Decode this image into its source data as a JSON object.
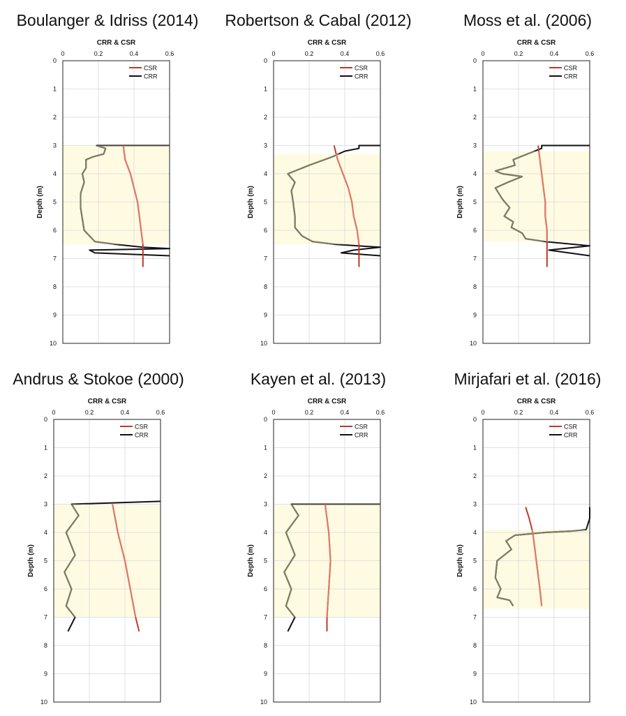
{
  "colors": {
    "csr": "#c0392b",
    "crr": "#111111",
    "crr_in_zone": "#7d7d66",
    "zone": "#fffbe3",
    "grid": "#d9d9d9",
    "csr_in_zone": "#e07a6a"
  },
  "chart_data": [
    {
      "type": "line",
      "title": "Boulanger & Idriss (2014)",
      "xlabel": "CRR & CSR",
      "ylabel": "Depth (m)",
      "xlim": [
        0,
        0.6
      ],
      "ylim": [
        0,
        10
      ],
      "xticks": [
        "0",
        "0.2",
        "0.4",
        "0.6"
      ],
      "yticks": [
        "0",
        "1",
        "2",
        "3",
        "4",
        "5",
        "6",
        "7",
        "8",
        "9",
        "10"
      ],
      "legend": [
        "CSR",
        "CRR"
      ],
      "highlight_depth": [
        3.0,
        6.5
      ],
      "csr": [
        [
          0.34,
          3.0
        ],
        [
          0.35,
          3.5
        ],
        [
          0.38,
          4.0
        ],
        [
          0.4,
          4.5
        ],
        [
          0.42,
          5.0
        ],
        [
          0.43,
          5.5
        ],
        [
          0.44,
          6.0
        ],
        [
          0.45,
          6.5
        ],
        [
          0.45,
          7.3
        ]
      ],
      "crr": [
        [
          0.6,
          3.0
        ],
        [
          0.19,
          3.0
        ],
        [
          0.24,
          3.1
        ],
        [
          0.23,
          3.3
        ],
        [
          0.17,
          3.4
        ],
        [
          0.13,
          3.5
        ],
        [
          0.13,
          3.8
        ],
        [
          0.11,
          4.0
        ],
        [
          0.12,
          4.3
        ],
        [
          0.1,
          4.7
        ],
        [
          0.1,
          5.2
        ],
        [
          0.11,
          5.6
        ],
        [
          0.12,
          6.0
        ],
        [
          0.15,
          6.2
        ],
        [
          0.18,
          6.4
        ],
        [
          0.3,
          6.5
        ],
        [
          0.45,
          6.6
        ],
        [
          0.6,
          6.65
        ],
        [
          0.15,
          6.7
        ],
        [
          0.18,
          6.8
        ],
        [
          0.6,
          6.9
        ]
      ]
    },
    {
      "type": "line",
      "title": "Robertson & Cabal (2012)",
      "xlabel": "CRR & CSR",
      "ylabel": "Depth (m)",
      "xlim": [
        0,
        0.6
      ],
      "ylim": [
        0,
        10
      ],
      "xticks": [
        "0",
        "0.2",
        "0.4",
        "0.6"
      ],
      "yticks": [
        "0",
        "1",
        "2",
        "3",
        "4",
        "5",
        "6",
        "7",
        "8",
        "9",
        "10"
      ],
      "legend": [
        "CSR",
        "CRR"
      ],
      "highlight_depth": [
        3.3,
        6.5
      ],
      "csr": [
        [
          0.34,
          3.0
        ],
        [
          0.36,
          3.5
        ],
        [
          0.39,
          4.0
        ],
        [
          0.42,
          4.5
        ],
        [
          0.44,
          5.0
        ],
        [
          0.45,
          5.5
        ],
        [
          0.47,
          6.0
        ],
        [
          0.48,
          6.5
        ],
        [
          0.48,
          7.3
        ]
      ],
      "crr": [
        [
          0.6,
          3.0
        ],
        [
          0.48,
          3.0
        ],
        [
          0.48,
          3.1
        ],
        [
          0.4,
          3.2
        ],
        [
          0.33,
          3.4
        ],
        [
          0.2,
          3.7
        ],
        [
          0.12,
          3.9
        ],
        [
          0.08,
          4.0
        ],
        [
          0.12,
          4.3
        ],
        [
          0.1,
          4.6
        ],
        [
          0.11,
          5.0
        ],
        [
          0.12,
          5.5
        ],
        [
          0.12,
          5.9
        ],
        [
          0.16,
          6.2
        ],
        [
          0.22,
          6.4
        ],
        [
          0.35,
          6.5
        ],
        [
          0.6,
          6.6
        ],
        [
          0.45,
          6.7
        ],
        [
          0.38,
          6.8
        ],
        [
          0.6,
          6.9
        ]
      ]
    },
    {
      "type": "line",
      "title": "Moss et al. (2006)",
      "xlabel": "CRR & CSR",
      "ylabel": "Depth (m)",
      "xlim": [
        0,
        0.6
      ],
      "ylim": [
        0,
        10
      ],
      "xticks": [
        "0",
        "0.2",
        "0.4",
        "0.6"
      ],
      "yticks": [
        "0",
        "1",
        "2",
        "3",
        "4",
        "5",
        "6",
        "7",
        "8",
        "9",
        "10"
      ],
      "legend": [
        "CSR",
        "CRR"
      ],
      "highlight_depth": [
        3.2,
        6.4
      ],
      "csr": [
        [
          0.31,
          3.0
        ],
        [
          0.32,
          3.5
        ],
        [
          0.33,
          4.0
        ],
        [
          0.34,
          4.5
        ],
        [
          0.35,
          5.0
        ],
        [
          0.35,
          5.5
        ],
        [
          0.36,
          6.0
        ],
        [
          0.36,
          6.5
        ],
        [
          0.36,
          7.3
        ]
      ],
      "crr": [
        [
          0.6,
          3.0
        ],
        [
          0.33,
          3.0
        ],
        [
          0.33,
          3.1
        ],
        [
          0.25,
          3.3
        ],
        [
          0.17,
          3.5
        ],
        [
          0.18,
          3.7
        ],
        [
          0.07,
          3.9
        ],
        [
          0.11,
          4.0
        ],
        [
          0.22,
          4.1
        ],
        [
          0.14,
          4.3
        ],
        [
          0.07,
          4.5
        ],
        [
          0.11,
          4.9
        ],
        [
          0.15,
          5.2
        ],
        [
          0.12,
          5.5
        ],
        [
          0.17,
          5.7
        ],
        [
          0.16,
          5.9
        ],
        [
          0.22,
          6.1
        ],
        [
          0.24,
          6.3
        ],
        [
          0.35,
          6.4
        ],
        [
          0.6,
          6.55
        ],
        [
          0.37,
          6.7
        ],
        [
          0.6,
          6.9
        ]
      ]
    },
    {
      "type": "line",
      "title": "Andrus & Stokoe (2000)",
      "xlabel": "CRR & CSR",
      "ylabel": "Depth (m)",
      "xlim": [
        0,
        0.6
      ],
      "ylim": [
        0,
        10
      ],
      "xticks": [
        "0",
        "0.2",
        "0.4",
        "0.6"
      ],
      "yticks": [
        "0",
        "1",
        "2",
        "3",
        "4",
        "5",
        "6",
        "7",
        "8",
        "9",
        "10"
      ],
      "legend": [
        "CSR",
        "CRR"
      ],
      "highlight_depth": [
        3.0,
        7.0
      ],
      "csr": [
        [
          0.33,
          3.0
        ],
        [
          0.36,
          4.0
        ],
        [
          0.4,
          5.0
        ],
        [
          0.43,
          6.0
        ],
        [
          0.46,
          7.0
        ],
        [
          0.48,
          7.5
        ]
      ],
      "crr": [
        [
          0.6,
          2.9
        ],
        [
          0.1,
          3.0
        ],
        [
          0.14,
          3.4
        ],
        [
          0.07,
          4.0
        ],
        [
          0.12,
          4.8
        ],
        [
          0.06,
          5.4
        ],
        [
          0.1,
          6.0
        ],
        [
          0.07,
          6.6
        ],
        [
          0.12,
          7.0
        ],
        [
          0.08,
          7.5
        ]
      ]
    },
    {
      "type": "line",
      "title": "Kayen et al. (2013)",
      "xlabel": "CRR & CSR",
      "ylabel": "Depth (m)",
      "xlim": [
        0,
        0.6
      ],
      "ylim": [
        0,
        10
      ],
      "xticks": [
        "0",
        "0.2",
        "0.4",
        "0.6"
      ],
      "yticks": [
        "0",
        "1",
        "2",
        "3",
        "4",
        "5",
        "6",
        "7",
        "8",
        "9",
        "10"
      ],
      "legend": [
        "CSR",
        "CRR"
      ],
      "highlight_depth": [
        3.0,
        7.0
      ],
      "csr": [
        [
          0.29,
          3.0
        ],
        [
          0.31,
          4.0
        ],
        [
          0.32,
          5.0
        ],
        [
          0.31,
          6.0
        ],
        [
          0.3,
          7.0
        ],
        [
          0.3,
          7.5
        ]
      ],
      "crr": [
        [
          0.6,
          3.0
        ],
        [
          0.1,
          3.0
        ],
        [
          0.14,
          3.4
        ],
        [
          0.07,
          4.0
        ],
        [
          0.12,
          4.8
        ],
        [
          0.06,
          5.4
        ],
        [
          0.1,
          6.0
        ],
        [
          0.07,
          6.6
        ],
        [
          0.12,
          7.0
        ],
        [
          0.08,
          7.5
        ]
      ]
    },
    {
      "type": "line",
      "title": "Mirjafari et al. (2016)",
      "xlabel": "CRR & CSR",
      "ylabel": "Depth (m)",
      "xlim": [
        0,
        0.6
      ],
      "ylim": [
        0,
        10
      ],
      "xticks": [
        "0",
        "0.2",
        "0.4",
        "0.6"
      ],
      "yticks": [
        "0",
        "1",
        "2",
        "3",
        "4",
        "5",
        "6",
        "7",
        "8",
        "9",
        "10"
      ],
      "legend": [
        "CSR",
        "CRR"
      ],
      "highlight_depth": [
        3.9,
        6.7
      ],
      "csr": [
        [
          0.24,
          3.1
        ],
        [
          0.26,
          3.5
        ],
        [
          0.28,
          4.0
        ],
        [
          0.3,
          5.0
        ],
        [
          0.32,
          6.0
        ],
        [
          0.33,
          6.6
        ]
      ],
      "crr": [
        [
          0.6,
          3.1
        ],
        [
          0.6,
          3.5
        ],
        [
          0.58,
          3.9
        ],
        [
          0.5,
          3.95
        ],
        [
          0.35,
          4.0
        ],
        [
          0.18,
          4.1
        ],
        [
          0.13,
          4.3
        ],
        [
          0.16,
          4.6
        ],
        [
          0.08,
          5.0
        ],
        [
          0.07,
          5.6
        ],
        [
          0.1,
          6.0
        ],
        [
          0.08,
          6.3
        ],
        [
          0.15,
          6.4
        ],
        [
          0.17,
          6.6
        ]
      ]
    }
  ]
}
